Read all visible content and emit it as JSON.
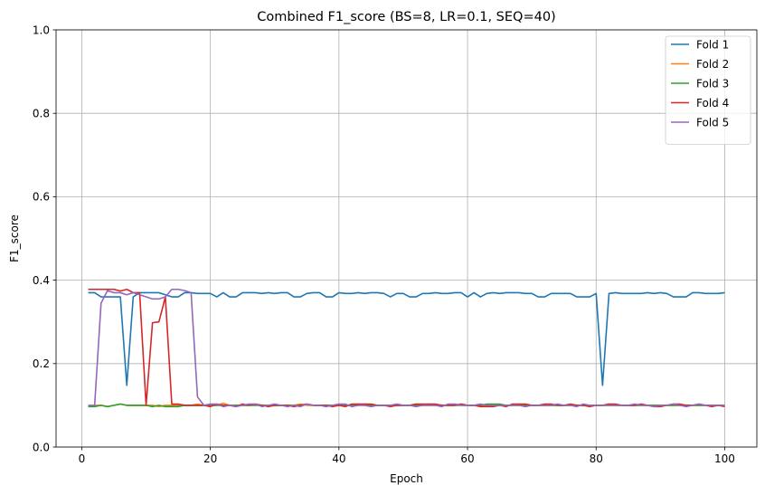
{
  "chart_data": {
    "type": "line",
    "title": "Combined F1_score (BS=8, LR=0.1, SEQ=40)",
    "xlabel": "Epoch",
    "ylabel": "F1_score",
    "xlim": [
      -4,
      105
    ],
    "ylim": [
      0,
      1
    ],
    "xticks": [
      0,
      20,
      40,
      60,
      80,
      100
    ],
    "yticks": [
      0.0,
      0.2,
      0.4,
      0.6,
      0.8,
      1.0
    ],
    "grid": true,
    "legend_position": "top-right",
    "series": [
      {
        "name": "Fold 1",
        "color": "#1f77b4",
        "values": [
          0.37,
          0.37,
          0.36,
          0.36,
          0.36,
          0.36,
          0.148,
          0.36,
          0.37,
          0.37,
          0.37,
          0.37,
          0.365,
          0.36,
          0.36,
          0.37,
          0.37,
          0.368,
          0.368,
          0.368,
          0.36,
          0.37,
          0.36,
          0.36,
          0.37,
          0.37,
          0.37,
          0.368,
          0.37,
          0.368,
          0.37,
          0.37,
          0.36,
          0.36,
          0.368,
          0.37,
          0.37,
          0.36,
          0.36,
          0.37,
          0.368,
          0.368,
          0.37,
          0.368,
          0.37,
          0.37,
          0.368,
          0.36,
          0.368,
          0.368,
          0.36,
          0.36,
          0.368,
          0.368,
          0.37,
          0.368,
          0.368,
          0.37,
          0.37,
          0.36,
          0.37,
          0.36,
          0.368,
          0.37,
          0.368,
          0.37,
          0.37,
          0.37,
          0.368,
          0.368,
          0.36,
          0.36,
          0.368,
          0.368,
          0.368,
          0.368,
          0.36,
          0.36,
          0.36,
          0.368,
          0.148,
          0.368,
          0.37,
          0.368,
          0.368,
          0.368,
          0.368,
          0.37,
          0.368,
          0.37,
          0.368,
          0.36,
          0.36,
          0.36,
          0.37,
          0.37,
          0.368,
          0.368,
          0.368,
          0.37
        ]
      },
      {
        "name": "Fold 2",
        "color": "#ff7f0e",
        "values": [
          0.097,
          0.1,
          0.1,
          0.097,
          0.1,
          0.103,
          0.1,
          0.1,
          0.1,
          0.1,
          0.1,
          0.097,
          0.1,
          0.1,
          0.1,
          0.1,
          0.1,
          0.103,
          0.1,
          0.1,
          0.1,
          0.105,
          0.1,
          0.1,
          0.1,
          0.1,
          0.103,
          0.1,
          0.1,
          0.1,
          0.1,
          0.1,
          0.1,
          0.103,
          0.1,
          0.1,
          0.1,
          0.1,
          0.1,
          0.1,
          0.1,
          0.1,
          0.103,
          0.1,
          0.1,
          0.1,
          0.1,
          0.1,
          0.1,
          0.1,
          0.1,
          0.103,
          0.1,
          0.1,
          0.1,
          0.1,
          0.1,
          0.1,
          0.103,
          0.1,
          0.1,
          0.1,
          0.1,
          0.1,
          0.1,
          0.1,
          0.1,
          0.103,
          0.1,
          0.1,
          0.1,
          0.1,
          0.1,
          0.1,
          0.1,
          0.1,
          0.1,
          0.1,
          0.1,
          0.1,
          0.1,
          0.103,
          0.1,
          0.1,
          0.1,
          0.1,
          0.1,
          0.1,
          0.1,
          0.1,
          0.1,
          0.1,
          0.1,
          0.1,
          0.1,
          0.1,
          0.1,
          0.1,
          0.1,
          0.1
        ]
      },
      {
        "name": "Fold 3",
        "color": "#2ca02c",
        "values": [
          0.097,
          0.097,
          0.1,
          0.097,
          0.1,
          0.103,
          0.1,
          0.1,
          0.1,
          0.1,
          0.097,
          0.1,
          0.097,
          0.097,
          0.097,
          0.1,
          0.1,
          0.1,
          0.1,
          0.1,
          0.1,
          0.1,
          0.1,
          0.1,
          0.1,
          0.1,
          0.1,
          0.1,
          0.1,
          0.1,
          0.1,
          0.1,
          0.1,
          0.1,
          0.103,
          0.1,
          0.1,
          0.1,
          0.1,
          0.1,
          0.1,
          0.1,
          0.1,
          0.103,
          0.1,
          0.1,
          0.1,
          0.1,
          0.1,
          0.1,
          0.1,
          0.1,
          0.1,
          0.103,
          0.1,
          0.1,
          0.1,
          0.1,
          0.1,
          0.1,
          0.1,
          0.1,
          0.103,
          0.103,
          0.103,
          0.1,
          0.1,
          0.1,
          0.1,
          0.1,
          0.1,
          0.1,
          0.1,
          0.1,
          0.1,
          0.1,
          0.1,
          0.1,
          0.1,
          0.1,
          0.1,
          0.1,
          0.1,
          0.1,
          0.1,
          0.1,
          0.1,
          0.1,
          0.1,
          0.1,
          0.1,
          0.1,
          0.1,
          0.1,
          0.1,
          0.1,
          0.1,
          0.1,
          0.1,
          0.1
        ]
      },
      {
        "name": "Fold 4",
        "color": "#d62728",
        "values": [
          0.378,
          0.378,
          0.378,
          0.378,
          0.378,
          0.374,
          0.378,
          0.37,
          0.37,
          0.1,
          0.298,
          0.3,
          0.36,
          0.103,
          0.103,
          0.1,
          0.1,
          0.1,
          0.1,
          0.097,
          0.103,
          0.1,
          0.1,
          0.097,
          0.103,
          0.1,
          0.103,
          0.1,
          0.097,
          0.1,
          0.1,
          0.1,
          0.097,
          0.1,
          0.103,
          0.1,
          0.1,
          0.1,
          0.097,
          0.1,
          0.097,
          0.103,
          0.103,
          0.103,
          0.103,
          0.1,
          0.1,
          0.097,
          0.1,
          0.1,
          0.1,
          0.103,
          0.103,
          0.103,
          0.103,
          0.1,
          0.1,
          0.1,
          0.103,
          0.1,
          0.1,
          0.097,
          0.097,
          0.097,
          0.1,
          0.097,
          0.103,
          0.103,
          0.103,
          0.1,
          0.1,
          0.103,
          0.103,
          0.1,
          0.1,
          0.103,
          0.1,
          0.1,
          0.097,
          0.1,
          0.1,
          0.103,
          0.103,
          0.1,
          0.1,
          0.1,
          0.103,
          0.1,
          0.097,
          0.097,
          0.1,
          0.103,
          0.103,
          0.1,
          0.1,
          0.103,
          0.1,
          0.097,
          0.1,
          0.097
        ]
      },
      {
        "name": "Fold 5",
        "color": "#9467bd",
        "values": [
          0.1,
          0.1,
          0.345,
          0.375,
          0.37,
          0.37,
          0.365,
          0.37,
          0.365,
          0.36,
          0.355,
          0.355,
          0.36,
          0.378,
          0.378,
          0.375,
          0.37,
          0.12,
          0.1,
          0.103,
          0.103,
          0.097,
          0.1,
          0.097,
          0.1,
          0.103,
          0.103,
          0.097,
          0.1,
          0.103,
          0.1,
          0.097,
          0.1,
          0.097,
          0.103,
          0.1,
          0.1,
          0.097,
          0.1,
          0.103,
          0.103,
          0.097,
          0.1,
          0.1,
          0.097,
          0.1,
          0.1,
          0.1,
          0.103,
          0.1,
          0.1,
          0.097,
          0.1,
          0.1,
          0.1,
          0.097,
          0.103,
          0.103,
          0.1,
          0.1,
          0.1,
          0.103,
          0.1,
          0.1,
          0.1,
          0.1,
          0.1,
          0.1,
          0.097,
          0.1,
          0.1,
          0.1,
          0.1,
          0.103,
          0.1,
          0.1,
          0.097,
          0.103,
          0.1,
          0.1,
          0.1,
          0.1,
          0.1,
          0.1,
          0.1,
          0.103,
          0.1,
          0.1,
          0.097,
          0.1,
          0.1,
          0.103,
          0.1,
          0.097,
          0.1,
          0.103,
          0.1,
          0.1,
          0.1,
          0.1
        ]
      }
    ]
  }
}
